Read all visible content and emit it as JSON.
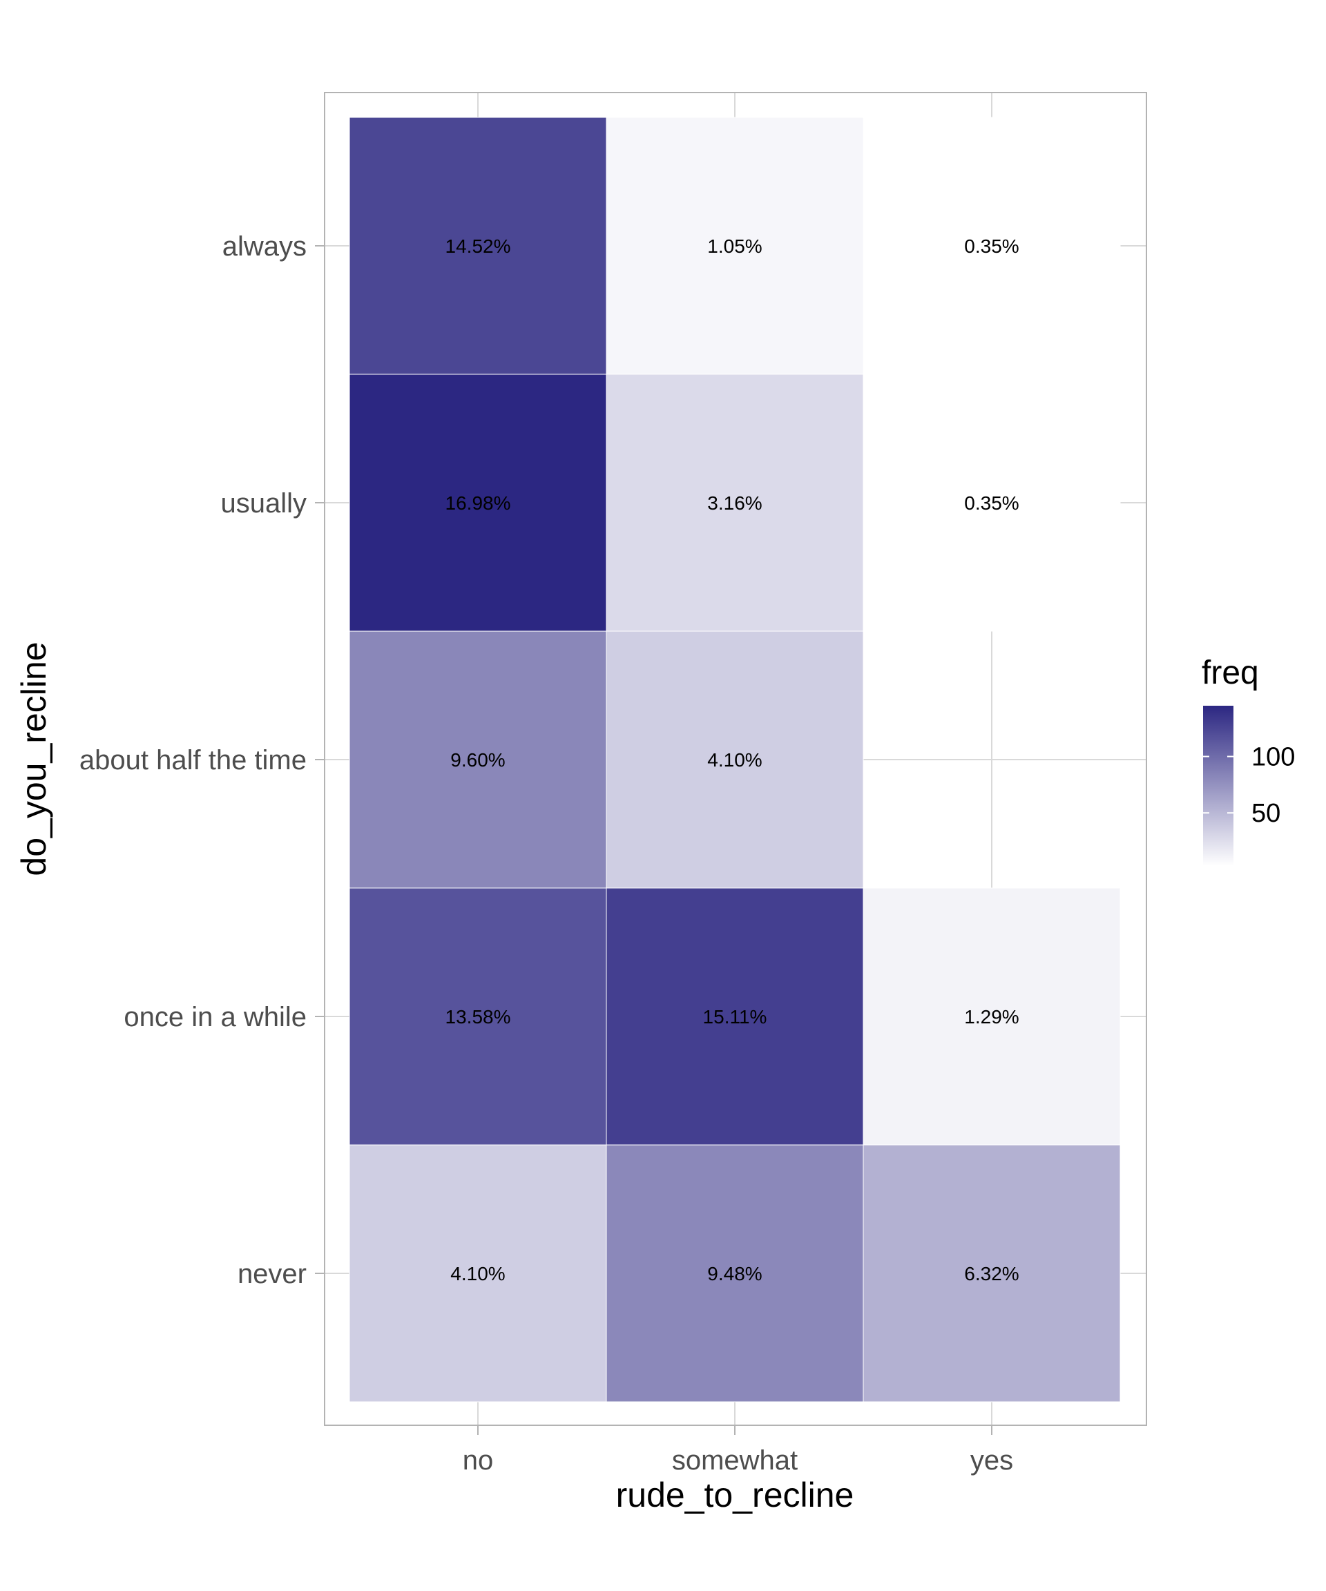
{
  "chart_data": {
    "type": "heatmap",
    "x_categories": [
      "no",
      "somewhat",
      "yes"
    ],
    "y_categories": [
      "always",
      "usually",
      "about half the time",
      "once in a while",
      "never"
    ],
    "xlabel": "rude_to_recline",
    "ylabel": "do_you_recline",
    "cells": [
      {
        "x": "no",
        "y": "always",
        "freq": 124,
        "label": "14.52%"
      },
      {
        "x": "somewhat",
        "y": "always",
        "freq": 9,
        "label": "1.05%"
      },
      {
        "x": "yes",
        "y": "always",
        "freq": 3,
        "label": "0.35%"
      },
      {
        "x": "no",
        "y": "usually",
        "freq": 145,
        "label": "16.98%"
      },
      {
        "x": "somewhat",
        "y": "usually",
        "freq": 27,
        "label": "3.16%"
      },
      {
        "x": "yes",
        "y": "usually",
        "freq": 3,
        "label": "0.35%"
      },
      {
        "x": "no",
        "y": "about half the time",
        "freq": 82,
        "label": "9.60%"
      },
      {
        "x": "somewhat",
        "y": "about half the time",
        "freq": 35,
        "label": "4.10%"
      },
      {
        "x": "no",
        "y": "once in a while",
        "freq": 116,
        "label": "13.58%"
      },
      {
        "x": "somewhat",
        "y": "once in a while",
        "freq": 129,
        "label": "15.11%"
      },
      {
        "x": "yes",
        "y": "once in a while",
        "freq": 11,
        "label": "1.29%"
      },
      {
        "x": "no",
        "y": "never",
        "freq": 35,
        "label": "4.10%"
      },
      {
        "x": "somewhat",
        "y": "never",
        "freq": 81,
        "label": "9.48%"
      },
      {
        "x": "yes",
        "y": "never",
        "freq": 54,
        "label": "6.32%"
      }
    ],
    "legend": {
      "title": "freq",
      "ticks": [
        50,
        100
      ],
      "range": [
        3,
        145
      ],
      "low_color": "#ffffff",
      "high_color": "#2c2782"
    },
    "panel_border_color": "#b3b3b3",
    "grid_color": "#d9d9d9"
  }
}
